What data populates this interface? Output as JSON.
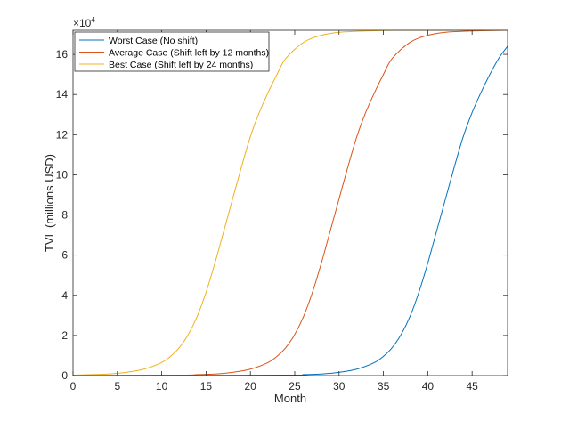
{
  "chart_data": {
    "type": "line",
    "xlabel": "Month",
    "ylabel": "TVL (millions USD)",
    "y_exponent_label": "×10",
    "y_exponent_power": "4",
    "xlim": [
      0,
      49
    ],
    "ylim": [
      0,
      172000
    ],
    "x_ticks": [
      0,
      5,
      10,
      15,
      20,
      25,
      30,
      35,
      40,
      45
    ],
    "y_ticks": [
      0,
      2,
      4,
      6,
      8,
      10,
      12,
      14,
      16
    ],
    "y_tick_scale": 10000,
    "grid": false,
    "legend_position": "top-left",
    "series": [
      {
        "name": "Worst Case (No shift)",
        "color": "#0072BD",
        "x": [
          0,
          24,
          26,
          28,
          30,
          32,
          34,
          35,
          36,
          37,
          38,
          39,
          40,
          41,
          42,
          43,
          44,
          45,
          46,
          47,
          48,
          49
        ],
        "y": [
          0,
          200,
          500,
          800,
          1600,
          3200,
          6500,
          9600,
          14000,
          20500,
          29500,
          41500,
          56000,
          72000,
          88000,
          104000,
          119000,
          131000,
          141000,
          150000,
          158000,
          164000
        ]
      },
      {
        "name": "Average Case (Shift left by 12 months)",
        "color": "#D95319",
        "x": [
          0,
          12,
          14,
          16,
          18,
          20,
          22,
          23,
          24,
          25,
          26,
          27,
          28,
          29,
          30,
          31,
          32,
          33,
          34,
          35,
          36,
          38,
          40,
          42,
          44,
          46,
          49
        ],
        "y": [
          0,
          200,
          500,
          800,
          1600,
          3200,
          6500,
          9600,
          14000,
          20500,
          29500,
          41500,
          56000,
          72000,
          88000,
          104000,
          119000,
          131000,
          141000,
          150000,
          158000,
          166000,
          169500,
          171000,
          171500,
          171800,
          172000
        ]
      },
      {
        "name": "Best Case (Shift left by 24 months)",
        "color": "#EDB120",
        "x": [
          0,
          2,
          4,
          6,
          8,
          10,
          11,
          12,
          13,
          14,
          15,
          16,
          17,
          18,
          19,
          20,
          21,
          22,
          23,
          24,
          26,
          28,
          30,
          32,
          34,
          36,
          40,
          49
        ],
        "y": [
          200,
          500,
          800,
          1600,
          3200,
          6500,
          9600,
          14000,
          20500,
          29500,
          41500,
          56000,
          72000,
          88000,
          104000,
          119000,
          131000,
          141000,
          150000,
          158000,
          166000,
          169500,
          171000,
          171500,
          171800,
          172000,
          172000,
          172000
        ]
      }
    ]
  }
}
